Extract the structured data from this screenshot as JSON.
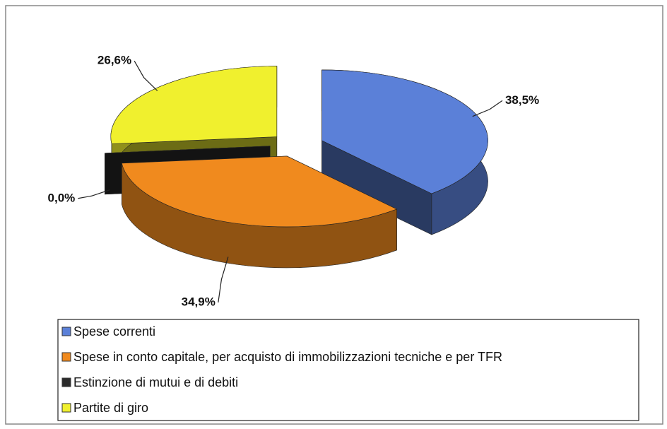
{
  "chart_data": {
    "type": "pie",
    "categories": [
      "Spese correnti",
      "Spese in conto capitale, per acquisto di immobilizzazioni tecniche e per TFR",
      "Estinzione di mutui e di debiti",
      "Partite di giro"
    ],
    "values": [
      38.5,
      34.9,
      0.0,
      26.6
    ],
    "value_labels": [
      "38,5%",
      "34,9%",
      "0,0%",
      "26,6%"
    ],
    "colors": [
      "#5b80d8",
      "#f08a1e",
      "#2b2b2b",
      "#f0f02e"
    ],
    "legend": "bottom"
  }
}
